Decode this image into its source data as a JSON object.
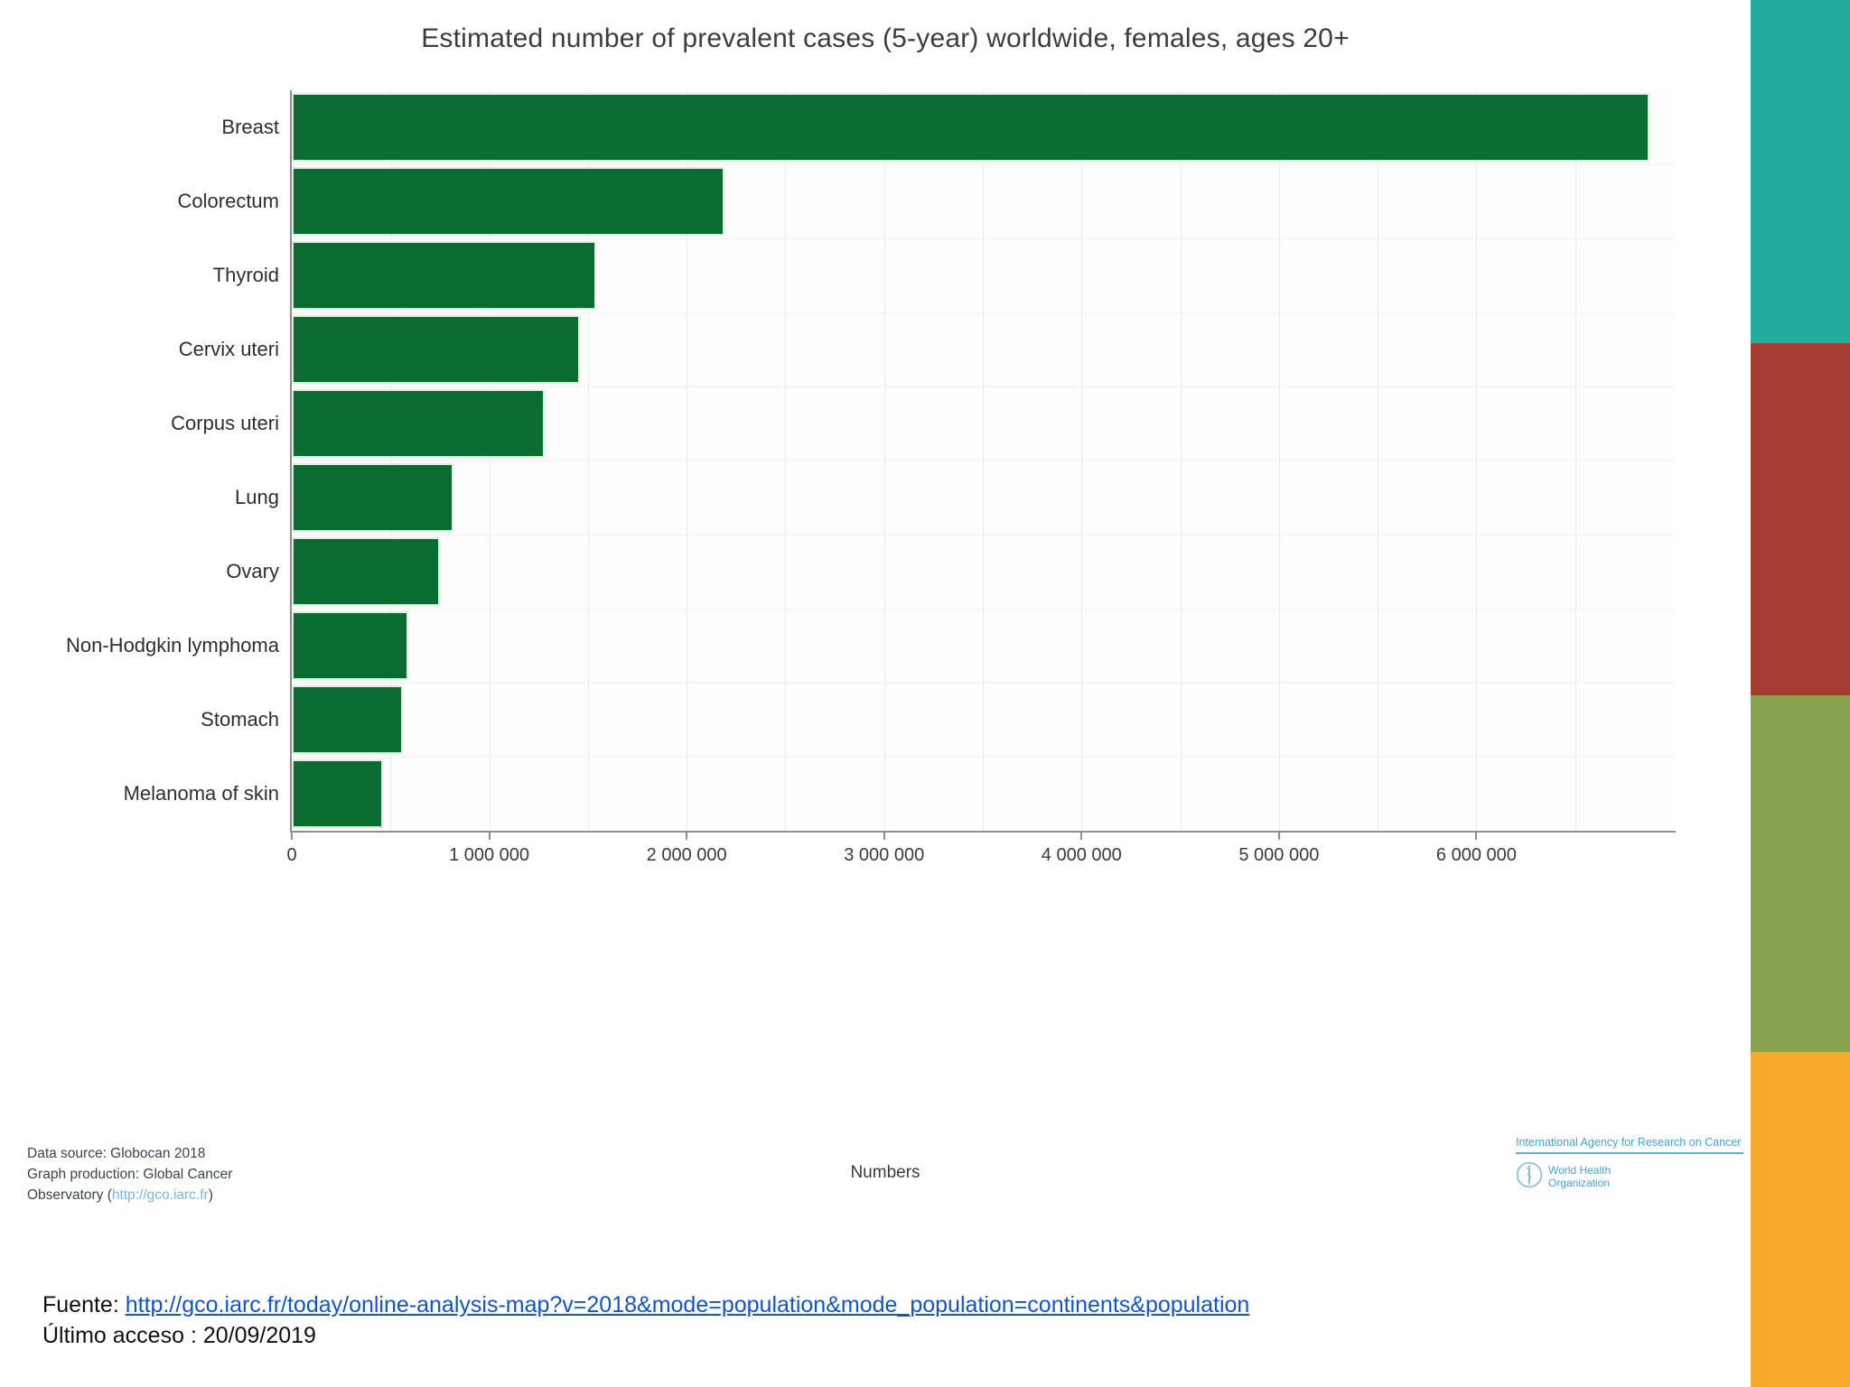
{
  "chart_data": {
    "type": "bar",
    "orientation": "horizontal",
    "title": "Estimated number of prevalent cases (5-year) worldwide, females, ages 20+",
    "categories": [
      "Breast",
      "Colorectum",
      "Thyroid",
      "Cervix uteri",
      "Corpus uteri",
      "Lung",
      "Ovary",
      "Non-Hodgkin lymphoma",
      "Stomach",
      "Melanoma of skin"
    ],
    "values": [
      6875000,
      2190000,
      1540000,
      1460000,
      1280000,
      820000,
      750000,
      590000,
      565000,
      460000
    ],
    "xlabel": "Numbers",
    "xlim": [
      0,
      7000000
    ],
    "xticks": [
      0,
      1000000,
      2000000,
      3000000,
      4000000,
      5000000,
      6000000
    ],
    "xtick_labels": [
      "0",
      "1 000 000",
      "2 000 000",
      "3 000 000",
      "4 000 000",
      "5 000 000",
      "6 000 000"
    ],
    "grid": true,
    "grid_step": 500000,
    "legend_position": "none",
    "bar_color": "#0a6c30"
  },
  "chart_footer": {
    "data_source": "Data source: Globocan 2018",
    "production_line1": "Graph production: Global Cancer",
    "production_line2_prefix": "Observatory (",
    "production_link": "http://gco.iarc.fr",
    "production_line2_suffix": ")",
    "iarc_label": "International Agency for Research on Cancer",
    "who_name_line1": "World Health",
    "who_name_line2": "Organization"
  },
  "source": {
    "label": "Fuente:",
    "url": "http://gco.iarc.fr/today/online-analysis-map?v=2018&mode=population&mode_population=continents&population",
    "last_access": "Último acceso : 20/09/2019"
  },
  "sidebar": {
    "blocks": [
      {
        "name": "teal-block",
        "color": "#21ab9b"
      },
      {
        "name": "red-block",
        "color": "#a43c31"
      },
      {
        "name": "olive-block",
        "color": "#89a24d"
      },
      {
        "name": "orange-block",
        "color": "#f6a92b"
      }
    ]
  },
  "colors": {
    "bar": "#0a6c30",
    "bar_border": "#d9f0df",
    "axis": "#8f8f8f",
    "grid": "#ececec",
    "logo_blue": "#4aa2cf",
    "footer_link_blue": "#79b7d8",
    "source_link_blue": "#1155cc"
  }
}
